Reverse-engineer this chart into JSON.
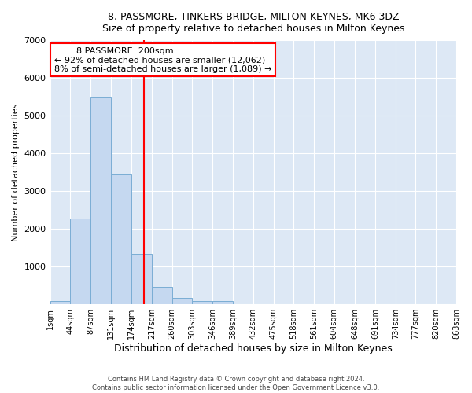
{
  "title": "8, PASSMORE, TINKERS BRIDGE, MILTON KEYNES, MK6 3DZ",
  "subtitle": "Size of property relative to detached houses in Milton Keynes",
  "xlabel": "Distribution of detached houses by size in Milton Keynes",
  "ylabel": "Number of detached properties",
  "bar_color": "#c5d8f0",
  "bar_edge_color": "#7aadd4",
  "fig_background_color": "#ffffff",
  "plot_background_color": "#dde8f5",
  "grid_color": "#ffffff",
  "bin_edges": [
    1,
    44,
    87,
    131,
    174,
    217,
    260,
    303,
    346,
    389,
    432,
    475,
    518,
    561,
    604,
    648,
    691,
    734,
    777,
    820,
    863
  ],
  "bar_heights": [
    80,
    2280,
    5480,
    3440,
    1340,
    460,
    170,
    85,
    85,
    0,
    0,
    0,
    0,
    0,
    0,
    0,
    0,
    0,
    0,
    0
  ],
  "red_line_x": 200,
  "ylim": [
    0,
    7000
  ],
  "yticks": [
    0,
    1000,
    2000,
    3000,
    4000,
    5000,
    6000,
    7000
  ],
  "xtick_labels": [
    "1sqm",
    "44sqm",
    "87sqm",
    "131sqm",
    "174sqm",
    "217sqm",
    "260sqm",
    "303sqm",
    "346sqm",
    "389sqm",
    "432sqm",
    "475sqm",
    "518sqm",
    "561sqm",
    "604sqm",
    "648sqm",
    "691sqm",
    "734sqm",
    "777sqm",
    "820sqm",
    "863sqm"
  ],
  "annotation_title": "8 PASSMORE: 200sqm",
  "annotation_line1": "← 92% of detached houses are smaller (12,062)",
  "annotation_line2": "8% of semi-detached houses are larger (1,089) →",
  "footnote1": "Contains HM Land Registry data © Crown copyright and database right 2024.",
  "footnote2": "Contains public sector information licensed under the Open Government Licence v3.0."
}
